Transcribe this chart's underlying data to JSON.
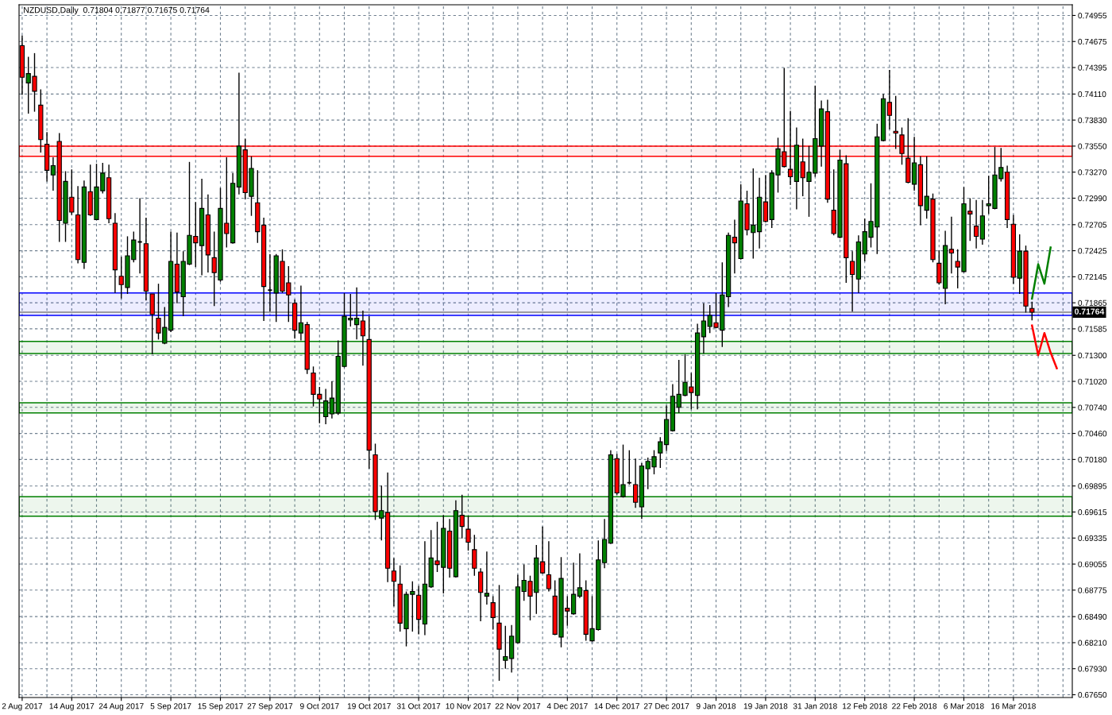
{
  "chart_data": {
    "type": "candlestick",
    "title": "NZDUSD,Daily  0.71804 0.71877 0.71675 0.71764",
    "categories": [
      "2 Aug 2017",
      null,
      null,
      null,
      null,
      null,
      null,
      null,
      "14 Aug 2017",
      null,
      null,
      null,
      null,
      null,
      null,
      null,
      "24 Aug 2017",
      null,
      null,
      null,
      null,
      null,
      null,
      null,
      "5 Sep 2017",
      null,
      null,
      null,
      null,
      null,
      null,
      null,
      "15 Sep 2017",
      null,
      null,
      null,
      null,
      null,
      null,
      null,
      "27 Sep 2017",
      null,
      null,
      null,
      null,
      null,
      null,
      null,
      "9 Oct 2017",
      null,
      null,
      null,
      null,
      null,
      null,
      null,
      "19 Oct 2017",
      null,
      null,
      null,
      null,
      null,
      null,
      null,
      "31 Oct 2017",
      null,
      null,
      null,
      null,
      null,
      null,
      null,
      "10 Nov 2017",
      null,
      null,
      null,
      null,
      null,
      null,
      null,
      "22 Nov 2017",
      null,
      null,
      null,
      null,
      null,
      null,
      null,
      "4 Dec 2017",
      null,
      null,
      null,
      null,
      null,
      null,
      null,
      "14 Dec 2017",
      null,
      null,
      null,
      null,
      null,
      null,
      null,
      "27 Dec 2017",
      null,
      null,
      null,
      null,
      null,
      null,
      null,
      "9 Jan 2018",
      null,
      null,
      null,
      null,
      null,
      null,
      null,
      "19 Jan 2018",
      null,
      null,
      null,
      null,
      null,
      null,
      null,
      "31 Jan 2018",
      null,
      null,
      null,
      null,
      null,
      null,
      null,
      "12 Feb 2018",
      null,
      null,
      null,
      null,
      null,
      null,
      null,
      "22 Feb 2018",
      null,
      null,
      null,
      null,
      null,
      null,
      null,
      "6 Mar 2018",
      null,
      null,
      null,
      null,
      null,
      null,
      null,
      "16 Mar 2018",
      null,
      null,
      null,
      null,
      null,
      null,
      null,
      null,
      null
    ],
    "colors": [
      "#ff0000",
      "#008000",
      "#ff0000",
      "#ff0000",
      "#ff0000",
      "#008000",
      "#ff0000",
      "#008000",
      "#ff0000",
      "#ff0000",
      "#008000",
      "#ff0000",
      "#008000",
      "#008000",
      "#ff0000",
      "#ff0000",
      "#ff0000",
      "#008000",
      "#008000",
      "#000000",
      "#ff0000",
      "#ff0000",
      "#ff0000",
      "#008000",
      "#008000",
      "#ff0000",
      "#008000",
      "#008000",
      "#ff0000",
      "#008000",
      "#ff0000",
      "#ff0000",
      "#008000",
      "#ff0000",
      "#008000",
      "#008000",
      "#ff0000",
      "#008000",
      "#ff0000",
      "#ff0000",
      "#000000",
      "#008000",
      "#ff0000",
      "#ff0000",
      "#ff0000",
      "#008000",
      "#ff0000",
      "#ff0000",
      "#ff0000",
      "#008000",
      "#008000",
      "#008000",
      "#008000",
      "#008000",
      "#008000",
      "#ff0000",
      "#ff0000",
      "#ff0000",
      "#008000",
      "#ff0000",
      "#ff0000",
      "#ff0000",
      "#008000",
      "#008000",
      "#ff0000",
      "#008000",
      "#008000",
      "#ff0000",
      "#008000",
      "#ff0000",
      "#008000",
      "#ff0000",
      "#ff0000",
      "#ff0000",
      "#ff0000",
      "#008000",
      "#ff0000",
      "#ff0000",
      "#008000",
      "#008000",
      "#008000",
      "#008000",
      "#ff0000",
      "#008000",
      "#ff0000",
      "#ff0000",
      "#ff0000",
      "#008000",
      "#ff0000",
      "#008000",
      "#008000",
      "#ff0000",
      "#008000",
      "#008000",
      "#008000",
      "#008000",
      "#ff0000",
      "#008000",
      "#000000",
      "#ff0000",
      "#008000",
      "#008000",
      "#008000",
      "#008000",
      "#008000",
      "#008000",
      "#008000",
      "#008000",
      "#ff0000",
      "#008000",
      "#008000",
      "#008000",
      "#ff0000",
      "#008000",
      "#008000",
      "#ff0000",
      "#008000",
      "#ff0000",
      "#008000",
      "#008000",
      "#ff0000",
      "#008000",
      "#008000",
      "#ff0000",
      "#ff0000",
      "#008000",
      "#ff0000",
      "#008000",
      "#008000",
      "#008000",
      "#ff0000",
      "#ff0000",
      "#008000",
      "#ff0000",
      "#ff0000",
      "#008000",
      "#008000",
      "#008000",
      "#008000",
      "#008000",
      "#ff0000",
      "#ff0000",
      "#ff0000",
      "#ff0000",
      "#008000",
      "#ff0000",
      "#008000",
      "#ff0000",
      "#ff0000",
      "#008000",
      "#ff0000",
      "#ff0000",
      "#008000",
      "#ff0000",
      "#ff0000",
      "#008000",
      "#008000",
      "#008000",
      "#008000",
      "#ff0000",
      "#ff0000",
      "#008000",
      "#ff0000",
      "#ff0000",
      null,
      null,
      null,
      null,
      null,
      null
    ],
    "ohlc": [
      [
        0.7463,
        0.7474,
        0.741,
        0.7429
      ],
      [
        0.7423,
        0.7451,
        0.739,
        0.7433
      ],
      [
        0.743,
        0.7455,
        0.7392,
        0.7414
      ],
      [
        0.7399,
        0.7416,
        0.7348,
        0.7362
      ],
      [
        0.7357,
        0.737,
        0.7317,
        0.7329
      ],
      [
        0.7324,
        0.7343,
        0.7307,
        0.7334
      ],
      [
        0.736,
        0.7369,
        0.7252,
        0.7275
      ],
      [
        0.7272,
        0.7328,
        0.7252,
        0.7317
      ],
      [
        0.73,
        0.733,
        0.7281,
        0.7284
      ],
      [
        0.7281,
        0.7312,
        0.7229,
        0.7233
      ],
      [
        0.723,
        0.7318,
        0.7223,
        0.7311
      ],
      [
        0.7306,
        0.7335,
        0.728,
        0.7281
      ],
      [
        0.7276,
        0.7336,
        0.7276,
        0.7311
      ],
      [
        0.7307,
        0.7337,
        0.7304,
        0.7326
      ],
      [
        0.7321,
        0.7335,
        0.7272,
        0.7277
      ],
      [
        0.7272,
        0.7283,
        0.7197,
        0.7222
      ],
      [
        0.7215,
        0.7236,
        0.7191,
        0.7206
      ],
      [
        0.7203,
        0.7258,
        0.7196,
        0.7237
      ],
      [
        0.7233,
        0.7263,
        0.723,
        0.7254
      ],
      [
        0.7252,
        0.7299,
        0.7218,
        0.7252
      ],
      [
        0.725,
        0.7278,
        0.7189,
        0.7199
      ],
      [
        0.7196,
        0.7196,
        0.7131,
        0.7174
      ],
      [
        0.717,
        0.7207,
        0.7147,
        0.7154
      ],
      [
        0.7143,
        0.7182,
        0.7142,
        0.716
      ],
      [
        0.7157,
        0.7263,
        0.7155,
        0.7231
      ],
      [
        0.7228,
        0.7262,
        0.7186,
        0.7198
      ],
      [
        0.7193,
        0.7242,
        0.7172,
        0.7231
      ],
      [
        0.7228,
        0.7338,
        0.7227,
        0.7259
      ],
      [
        0.7258,
        0.7295,
        0.7225,
        0.7251
      ],
      [
        0.7248,
        0.732,
        0.7216,
        0.7288
      ],
      [
        0.7281,
        0.7303,
        0.7219,
        0.7238
      ],
      [
        0.7235,
        0.7263,
        0.7183,
        0.7219
      ],
      [
        0.7211,
        0.731,
        0.7209,
        0.7288
      ],
      [
        0.7272,
        0.7343,
        0.7246,
        0.7261
      ],
      [
        0.7251,
        0.7326,
        0.725,
        0.7315
      ],
      [
        0.7311,
        0.7434,
        0.7303,
        0.7355
      ],
      [
        0.7351,
        0.7363,
        0.7298,
        0.7305
      ],
      [
        0.7301,
        0.7344,
        0.728,
        0.7331
      ],
      [
        0.7294,
        0.7329,
        0.7251,
        0.7263
      ],
      [
        0.727,
        0.7278,
        0.7167,
        0.7204
      ],
      [
        0.72,
        0.7239,
        0.7177,
        0.72
      ],
      [
        0.7197,
        0.7239,
        0.7166,
        0.7237
      ],
      [
        0.7231,
        0.7244,
        0.7197,
        0.7199
      ],
      [
        0.7208,
        0.7226,
        0.7166,
        0.7195
      ],
      [
        0.7186,
        0.719,
        0.7148,
        0.7157
      ],
      [
        0.7154,
        0.7205,
        0.7146,
        0.7165
      ],
      [
        0.7163,
        0.7166,
        0.711,
        0.7115
      ],
      [
        0.7111,
        0.7118,
        0.7075,
        0.7088
      ],
      [
        0.7088,
        0.7096,
        0.7057,
        0.7083
      ],
      [
        0.7064,
        0.7094,
        0.7056,
        0.7081
      ],
      [
        0.7067,
        0.7102,
        0.7062,
        0.7084
      ],
      [
        0.7068,
        0.7146,
        0.7066,
        0.7129
      ],
      [
        0.7118,
        0.7197,
        0.7117,
        0.7172
      ],
      [
        0.7168,
        0.7196,
        0.7161,
        0.717
      ],
      [
        0.7163,
        0.7203,
        0.7147,
        0.717
      ],
      [
        0.7167,
        0.7178,
        0.7119,
        0.7151
      ],
      [
        0.7147,
        0.7172,
        0.7008,
        0.7028
      ],
      [
        0.7023,
        0.7035,
        0.6953,
        0.6962
      ],
      [
        0.6955,
        0.699,
        0.6931,
        0.6963
      ],
      [
        0.6961,
        0.7004,
        0.6886,
        0.6901
      ],
      [
        0.6898,
        0.6912,
        0.686,
        0.6887
      ],
      [
        0.6884,
        0.6904,
        0.6833,
        0.6842
      ],
      [
        0.6836,
        0.6876,
        0.6817,
        0.6873
      ],
      [
        0.6873,
        0.6887,
        0.6833,
        0.6876
      ],
      [
        0.6872,
        0.6882,
        0.683,
        0.6846
      ],
      [
        0.6841,
        0.693,
        0.6829,
        0.6884
      ],
      [
        0.6881,
        0.6942,
        0.688,
        0.6912
      ],
      [
        0.6909,
        0.6951,
        0.6897,
        0.6905
      ],
      [
        0.6902,
        0.6958,
        0.6874,
        0.6944
      ],
      [
        0.6941,
        0.6954,
        0.6891,
        0.6901
      ],
      [
        0.6892,
        0.6974,
        0.6891,
        0.6963
      ],
      [
        0.6958,
        0.698,
        0.6933,
        0.6946
      ],
      [
        0.6943,
        0.6957,
        0.692,
        0.6929
      ],
      [
        0.6921,
        0.6937,
        0.6893,
        0.6901
      ],
      [
        0.6897,
        0.6901,
        0.6844,
        0.6875
      ],
      [
        0.6871,
        0.6919,
        0.6862,
        0.6874
      ],
      [
        0.6864,
        0.6871,
        0.6835,
        0.6848
      ],
      [
        0.6842,
        0.6883,
        0.678,
        0.6814
      ],
      [
        0.6802,
        0.6839,
        0.6793,
        0.6806
      ],
      [
        0.6804,
        0.684,
        0.6789,
        0.6828
      ],
      [
        0.6821,
        0.6894,
        0.682,
        0.6881
      ],
      [
        0.6876,
        0.6905,
        0.6866,
        0.6888
      ],
      [
        0.6887,
        0.6893,
        0.6845,
        0.6871
      ],
      [
        0.6875,
        0.6926,
        0.6852,
        0.6912
      ],
      [
        0.6908,
        0.6946,
        0.6895,
        0.6896
      ],
      [
        0.6894,
        0.693,
        0.6876,
        0.6879
      ],
      [
        0.6871,
        0.6888,
        0.6829,
        0.683
      ],
      [
        0.6827,
        0.6913,
        0.6816,
        0.689
      ],
      [
        0.6858,
        0.6871,
        0.6839,
        0.6855
      ],
      [
        0.6852,
        0.6907,
        0.6851,
        0.6873
      ],
      [
        0.6871,
        0.6917,
        0.6869,
        0.688
      ],
      [
        0.6877,
        0.6888,
        0.6823,
        0.683
      ],
      [
        0.6823,
        0.6871,
        0.6822,
        0.6836
      ],
      [
        0.6835,
        0.6931,
        0.6834,
        0.691
      ],
      [
        0.6907,
        0.6954,
        0.6901,
        0.6932
      ],
      [
        0.6928,
        0.7028,
        0.6927,
        0.7023
      ],
      [
        0.7019,
        0.7024,
        0.698,
        0.6982
      ],
      [
        0.6978,
        0.7034,
        0.6977,
        0.6991
      ],
      [
        0.6993,
        0.7028,
        0.6991,
        0.6993
      ],
      [
        0.6991,
        0.7019,
        0.6966,
        0.6972
      ],
      [
        0.6967,
        0.7014,
        0.6954,
        0.7011
      ],
      [
        0.7008,
        0.702,
        0.6986,
        0.7016
      ],
      [
        0.701,
        0.7028,
        0.7002,
        0.7021
      ],
      [
        0.7025,
        0.7042,
        0.7009,
        0.7037
      ],
      [
        0.7034,
        0.7076,
        0.7027,
        0.7061
      ],
      [
        0.7049,
        0.7099,
        0.7048,
        0.7086
      ],
      [
        0.7074,
        0.7125,
        0.7068,
        0.7088
      ],
      [
        0.7087,
        0.7131,
        0.7086,
        0.7101
      ],
      [
        0.7096,
        0.7111,
        0.7072,
        0.709
      ],
      [
        0.7087,
        0.7164,
        0.7072,
        0.7154
      ],
      [
        0.715,
        0.7186,
        0.7132,
        0.7167
      ],
      [
        0.7161,
        0.7184,
        0.7154,
        0.7173
      ],
      [
        0.7165,
        0.7197,
        0.7159,
        0.716
      ],
      [
        0.7157,
        0.723,
        0.7139,
        0.7195
      ],
      [
        0.7193,
        0.7262,
        0.7182,
        0.7259
      ],
      [
        0.7257,
        0.7276,
        0.7218,
        0.7251
      ],
      [
        0.7234,
        0.7314,
        0.7233,
        0.7296
      ],
      [
        0.7293,
        0.7307,
        0.7259,
        0.7265
      ],
      [
        0.7262,
        0.7331,
        0.7234,
        0.727
      ],
      [
        0.7263,
        0.7321,
        0.7245,
        0.73
      ],
      [
        0.7295,
        0.7324,
        0.7273,
        0.7274
      ],
      [
        0.7276,
        0.7329,
        0.7267,
        0.7326
      ],
      [
        0.7324,
        0.7364,
        0.7305,
        0.7352
      ],
      [
        0.7349,
        0.7439,
        0.7332,
        0.7333
      ],
      [
        0.733,
        0.7393,
        0.7313,
        0.7322
      ],
      [
        0.7317,
        0.7375,
        0.7287,
        0.7356
      ],
      [
        0.7338,
        0.7363,
        0.7301,
        0.7321
      ],
      [
        0.7317,
        0.7355,
        0.7279,
        0.7327
      ],
      [
        0.7326,
        0.742,
        0.7322,
        0.7363
      ],
      [
        0.7355,
        0.7404,
        0.7333,
        0.7395
      ],
      [
        0.7392,
        0.7405,
        0.7294,
        0.7298
      ],
      [
        0.7286,
        0.733,
        0.7259,
        0.7261
      ],
      [
        0.7257,
        0.7351,
        0.7256,
        0.734
      ],
      [
        0.7336,
        0.7345,
        0.7208,
        0.7235
      ],
      [
        0.7231,
        0.7242,
        0.7177,
        0.7217
      ],
      [
        0.7212,
        0.7259,
        0.7197,
        0.7252
      ],
      [
        0.7239,
        0.7277,
        0.7231,
        0.7263
      ],
      [
        0.7257,
        0.7315,
        0.7246,
        0.7274
      ],
      [
        0.7268,
        0.7379,
        0.7239,
        0.7365
      ],
      [
        0.7361,
        0.7411,
        0.736,
        0.7406
      ],
      [
        0.7402,
        0.7437,
        0.7373,
        0.7388
      ],
      [
        0.7371,
        0.7409,
        0.7352,
        0.7369
      ],
      [
        0.7367,
        0.7375,
        0.7335,
        0.7347
      ],
      [
        0.7342,
        0.7385,
        0.7315,
        0.7316
      ],
      [
        0.7314,
        0.7365,
        0.7307,
        0.7337
      ],
      [
        0.7335,
        0.7344,
        0.727,
        0.7291
      ],
      [
        0.7286,
        0.7344,
        0.7277,
        0.7301
      ],
      [
        0.7298,
        0.7304,
        0.723,
        0.7233
      ],
      [
        0.7229,
        0.7243,
        0.7206,
        0.7208
      ],
      [
        0.7202,
        0.7264,
        0.7185,
        0.7248
      ],
      [
        0.7244,
        0.7279,
        0.7218,
        0.724
      ],
      [
        0.7231,
        0.7244,
        0.7202,
        0.7225
      ],
      [
        0.722,
        0.7311,
        0.7219,
        0.7293
      ],
      [
        0.7285,
        0.7299,
        0.7253,
        0.7282
      ],
      [
        0.7269,
        0.7297,
        0.7245,
        0.7258
      ],
      [
        0.7255,
        0.7297,
        0.7249,
        0.728
      ],
      [
        0.7291,
        0.7323,
        0.7282,
        0.7293
      ],
      [
        0.7288,
        0.7354,
        0.7287,
        0.7324
      ],
      [
        0.732,
        0.7353,
        0.7317,
        0.7332
      ],
      [
        0.7327,
        0.7334,
        0.7267,
        0.7276
      ],
      [
        0.7271,
        0.7281,
        0.7207,
        0.7214
      ],
      [
        0.7213,
        0.726,
        0.7196,
        0.7242
      ],
      [
        0.7242,
        0.7248,
        0.7176,
        0.7183
      ],
      [
        0.71804,
        0.71877,
        0.71675,
        0.71764
      ],
      null,
      null,
      null,
      null,
      null,
      null
    ],
    "series": [
      {
        "type": "line",
        "color": "#008000",
        "values": [
          null,
          null,
          null,
          null,
          null,
          null,
          null,
          null,
          null,
          null,
          null,
          null,
          null,
          null,
          null,
          null,
          null,
          null,
          null,
          null,
          null,
          null,
          null,
          null,
          null,
          null,
          null,
          null,
          null,
          null,
          null,
          null,
          null,
          null,
          null,
          null,
          null,
          null,
          null,
          null,
          null,
          null,
          null,
          null,
          null,
          null,
          null,
          null,
          null,
          null,
          null,
          null,
          null,
          null,
          null,
          null,
          null,
          null,
          null,
          null,
          null,
          null,
          null,
          null,
          null,
          null,
          null,
          null,
          null,
          null,
          null,
          null,
          null,
          null,
          null,
          null,
          null,
          null,
          null,
          null,
          null,
          null,
          null,
          null,
          null,
          null,
          null,
          null,
          null,
          null,
          null,
          null,
          null,
          null,
          null,
          null,
          null,
          null,
          null,
          null,
          null,
          null,
          null,
          null,
          null,
          null,
          null,
          null,
          null,
          null,
          null,
          null,
          null,
          null,
          null,
          null,
          null,
          null,
          null,
          null,
          null,
          null,
          null,
          null,
          null,
          null,
          null,
          null,
          null,
          null,
          null,
          null,
          null,
          null,
          null,
          null,
          null,
          null,
          null,
          null,
          null,
          null,
          null,
          null,
          null,
          null,
          null,
          null,
          null,
          null,
          null,
          null,
          null,
          null,
          null,
          null,
          null,
          null,
          null,
          null,
          null,
          null,
          null,
          0.7191,
          0.7228,
          0.7207,
          0.7246,
          null,
          null,
          null
        ]
      },
      {
        "type": "line",
        "color": "#ff0000",
        "values": [
          null,
          null,
          null,
          null,
          null,
          null,
          null,
          null,
          null,
          null,
          null,
          null,
          null,
          null,
          null,
          null,
          null,
          null,
          null,
          null,
          null,
          null,
          null,
          null,
          null,
          null,
          null,
          null,
          null,
          null,
          null,
          null,
          null,
          null,
          null,
          null,
          null,
          null,
          null,
          null,
          null,
          null,
          null,
          null,
          null,
          null,
          null,
          null,
          null,
          null,
          null,
          null,
          null,
          null,
          null,
          null,
          null,
          null,
          null,
          null,
          null,
          null,
          null,
          null,
          null,
          null,
          null,
          null,
          null,
          null,
          null,
          null,
          null,
          null,
          null,
          null,
          null,
          null,
          null,
          null,
          null,
          null,
          null,
          null,
          null,
          null,
          null,
          null,
          null,
          null,
          null,
          null,
          null,
          null,
          null,
          null,
          null,
          null,
          null,
          null,
          null,
          null,
          null,
          null,
          null,
          null,
          null,
          null,
          null,
          null,
          null,
          null,
          null,
          null,
          null,
          null,
          null,
          null,
          null,
          null,
          null,
          null,
          null,
          null,
          null,
          null,
          null,
          null,
          null,
          null,
          null,
          null,
          null,
          null,
          null,
          null,
          null,
          null,
          null,
          null,
          null,
          null,
          null,
          null,
          null,
          null,
          null,
          null,
          null,
          null,
          null,
          null,
          null,
          null,
          null,
          null,
          null,
          null,
          null,
          null,
          null,
          null,
          null,
          0.7162,
          0.713,
          0.7154,
          0.7133,
          0.7116,
          null,
          null
        ]
      }
    ],
    "ylim": [
      0.6762,
      0.7507
    ],
    "yticks": [
      {
        "value": 0.74955,
        "label": "0.74955"
      },
      {
        "value": 0.74675,
        "label": "0.74675"
      },
      {
        "value": 0.74395,
        "label": "0.74395"
      },
      {
        "value": 0.7411,
        "label": "0.74110"
      },
      {
        "value": 0.7383,
        "label": "0.73830"
      },
      {
        "value": 0.7355,
        "label": "0.73550"
      },
      {
        "value": 0.7327,
        "label": "0.73270"
      },
      {
        "value": 0.7299,
        "label": "0.72990"
      },
      {
        "value": 0.72705,
        "label": "0.72705"
      },
      {
        "value": 0.72425,
        "label": "0.72425"
      },
      {
        "value": 0.72145,
        "label": "0.72145"
      },
      {
        "value": 0.71865,
        "label": "0.71865"
      },
      {
        "value": 0.71585,
        "label": "0.71585"
      },
      {
        "value": 0.713,
        "label": "0.71300"
      },
      {
        "value": 0.7102,
        "label": "0.71020"
      },
      {
        "value": 0.7074,
        "label": "0.70740"
      },
      {
        "value": 0.7046,
        "label": "0.70460"
      },
      {
        "value": 0.7018,
        "label": "0.70180"
      },
      {
        "value": 0.69895,
        "label": "0.69895"
      },
      {
        "value": 0.69615,
        "label": "0.69615"
      },
      {
        "value": 0.69335,
        "label": "0.69335"
      },
      {
        "value": 0.69055,
        "label": "0.69055"
      },
      {
        "value": 0.68775,
        "label": "0.68775"
      },
      {
        "value": 0.6849,
        "label": "0.68490"
      },
      {
        "value": 0.6821,
        "label": "0.68210"
      },
      {
        "value": 0.6793,
        "label": "0.67930"
      },
      {
        "value": 0.6765,
        "label": "0.67650"
      }
    ],
    "ref_lines": [
      {
        "axis": "y",
        "value": 0.71764,
        "label": "0.71764",
        "color": "#808080"
      }
    ],
    "bands": [
      {
        "axis": "y",
        "from": 0.7173,
        "to": 0.7197,
        "color": "#0000ff"
      },
      {
        "axis": "y",
        "from": 0.7344,
        "to": 0.7355,
        "color": "#ff0000"
      },
      {
        "axis": "y",
        "from": 0.7132,
        "to": 0.7145,
        "color": "#008000"
      },
      {
        "axis": "y",
        "from": 0.7068,
        "to": 0.7079,
        "color": "#008000"
      },
      {
        "axis": "y",
        "from": 0.6957,
        "to": 0.6978,
        "color": "#008000"
      }
    ],
    "grid": true,
    "line_style": "solid"
  }
}
